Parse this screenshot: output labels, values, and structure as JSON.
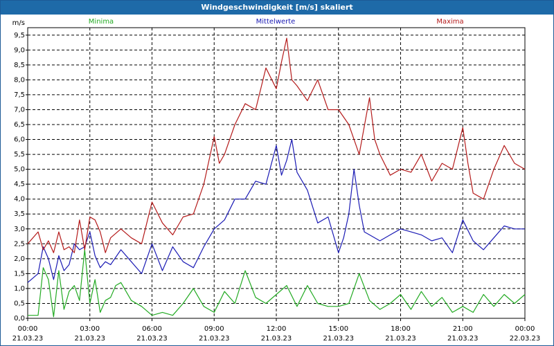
{
  "window": {
    "title": "Windgeschwindigkeit [m/s] skaliert"
  },
  "chart_data": {
    "type": "line",
    "title": "Windgeschwindigkeit [m/s] skaliert",
    "ylabel": "m/s",
    "ylim": [
      0,
      9.75
    ],
    "xlim": [
      0,
      24
    ],
    "grid": true,
    "legend_position": "top",
    "yticks": [
      "0,0",
      "0,5",
      "1,0",
      "1,5",
      "2,0",
      "2,5",
      "3,0",
      "3,5",
      "4,0",
      "4,5",
      "5,0",
      "5,5",
      "6,0",
      "6,5",
      "7,0",
      "7,5",
      "8,0",
      "8,5",
      "9,0",
      "9,5"
    ],
    "xticks": [
      {
        "time": "00:00",
        "date": "21.03.23"
      },
      {
        "time": "03:00",
        "date": "21.03.23"
      },
      {
        "time": "06:00",
        "date": "21.03.23"
      },
      {
        "time": "09:00",
        "date": "21.03.23"
      },
      {
        "time": "12:00",
        "date": "21.03.23"
      },
      {
        "time": "15:00",
        "date": "21.03.23"
      },
      {
        "time": "18:00",
        "date": "21.03.23"
      },
      {
        "time": "21:00",
        "date": "21.03.23"
      },
      {
        "time": "00:00",
        "date": "22.03.23"
      }
    ],
    "series": [
      {
        "name": "Minima",
        "color": "#22aa22",
        "x": [
          0,
          0.5,
          0.75,
          1,
          1.25,
          1.5,
          1.75,
          2,
          2.25,
          2.5,
          2.75,
          3,
          3.25,
          3.5,
          3.75,
          4,
          4.25,
          4.5,
          5,
          5.5,
          6,
          6.5,
          7,
          7.5,
          8,
          8.5,
          9,
          9.5,
          10,
          10.5,
          11,
          11.5,
          12,
          12.5,
          13,
          13.5,
          14,
          14.5,
          15,
          15.5,
          16,
          16.5,
          17,
          17.5,
          18,
          18.5,
          19,
          19.5,
          20,
          20.5,
          21,
          21.5,
          22,
          22.5,
          23,
          23.5,
          24
        ],
        "values": [
          0.1,
          0.1,
          1.7,
          1.3,
          0.05,
          1.6,
          0.3,
          0.9,
          1.1,
          0.6,
          2.3,
          0.5,
          1.3,
          0.2,
          0.6,
          0.7,
          1.1,
          1.2,
          0.6,
          0.4,
          0.1,
          0.2,
          0.1,
          0.5,
          1.0,
          0.4,
          0.2,
          0.9,
          0.5,
          1.6,
          0.7,
          0.5,
          0.8,
          1.1,
          0.4,
          1.1,
          0.5,
          0.4,
          0.4,
          0.5,
          1.5,
          0.6,
          0.3,
          0.5,
          0.8,
          0.3,
          0.9,
          0.4,
          0.7,
          0.2,
          0.4,
          0.2,
          0.8,
          0.4,
          0.8,
          0.5,
          0.8
        ]
      },
      {
        "name": "Mittelwerte",
        "color": "#1a1ab4",
        "x": [
          0,
          0.5,
          0.75,
          1,
          1.25,
          1.5,
          1.75,
          2,
          2.25,
          2.5,
          2.75,
          3,
          3.25,
          3.5,
          3.75,
          4,
          4.5,
          5,
          5.5,
          6,
          6.5,
          7,
          7.5,
          8,
          8.5,
          9,
          9.5,
          10,
          10.5,
          11,
          11.5,
          12,
          12.25,
          12.5,
          12.75,
          13,
          13.5,
          14,
          14.5,
          15,
          15.25,
          15.5,
          15.75,
          16,
          16.25,
          16.5,
          17,
          17.5,
          18,
          18.5,
          19,
          19.5,
          20,
          20.5,
          21,
          21.5,
          22,
          22.5,
          23,
          23.5,
          24
        ],
        "values": [
          1.2,
          1.5,
          2.4,
          2.0,
          1.3,
          2.1,
          1.6,
          1.8,
          2.5,
          2.3,
          2.4,
          2.9,
          2.1,
          1.7,
          1.9,
          1.8,
          2.3,
          1.9,
          1.5,
          2.5,
          1.6,
          2.4,
          1.9,
          1.7,
          2.4,
          3.0,
          3.3,
          4.0,
          4.0,
          4.6,
          4.5,
          5.8,
          4.8,
          5.3,
          6.0,
          4.9,
          4.3,
          3.2,
          3.4,
          2.2,
          2.7,
          3.5,
          5.0,
          3.8,
          2.9,
          2.8,
          2.6,
          2.8,
          3.0,
          2.9,
          2.8,
          2.6,
          2.7,
          2.2,
          3.3,
          2.6,
          2.3,
          2.7,
          3.1,
          3.0,
          3.0
        ]
      },
      {
        "name": "Maxima",
        "color": "#b41a1a",
        "x": [
          0,
          0.5,
          0.75,
          1,
          1.25,
          1.5,
          1.75,
          2,
          2.25,
          2.5,
          2.75,
          3,
          3.25,
          3.5,
          3.75,
          4,
          4.5,
          5,
          5.5,
          6,
          6.5,
          7,
          7.5,
          8,
          8.5,
          9,
          9.25,
          9.5,
          10,
          10.5,
          11,
          11.5,
          12,
          12.25,
          12.5,
          12.75,
          13,
          13.5,
          14,
          14.5,
          15,
          15.5,
          16,
          16.5,
          16.75,
          17,
          17.5,
          18,
          18.5,
          19,
          19.5,
          20,
          20.5,
          21,
          21.25,
          21.5,
          22,
          22.5,
          23,
          23.5,
          24
        ],
        "values": [
          2.5,
          2.9,
          2.3,
          2.6,
          2.2,
          2.9,
          2.3,
          2.4,
          2.2,
          3.3,
          2.3,
          3.4,
          3.3,
          2.9,
          2.2,
          2.7,
          3.0,
          2.7,
          2.5,
          3.9,
          3.2,
          2.8,
          3.4,
          3.5,
          4.5,
          6.1,
          5.2,
          5.5,
          6.5,
          7.2,
          7.0,
          8.4,
          7.7,
          8.6,
          9.4,
          8.0,
          7.8,
          7.3,
          8.0,
          7.0,
          7.0,
          6.5,
          5.5,
          7.4,
          6.0,
          5.5,
          4.8,
          5.0,
          4.9,
          5.5,
          4.6,
          5.2,
          5.0,
          6.4,
          5.2,
          4.2,
          4.0,
          5.0,
          5.8,
          5.2,
          5.0
        ]
      }
    ]
  }
}
